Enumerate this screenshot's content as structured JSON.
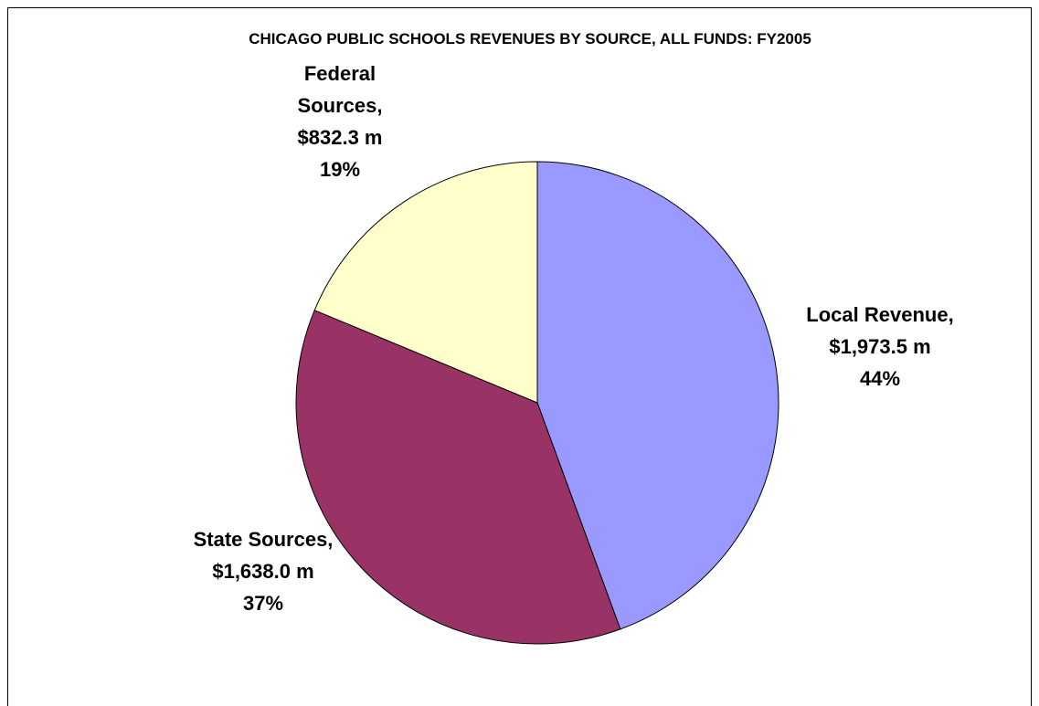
{
  "chart_data": {
    "type": "pie",
    "title": "CHICAGO PUBLIC SCHOOLS REVENUES BY SOURCE, ALL FUNDS: FY2005",
    "categories": [
      "Local Revenue,",
      "State Sources,",
      "Federal Sources,"
    ],
    "values": [
      1973.5,
      1638.0,
      832.3
    ],
    "value_labels": [
      "$1,973.5 m",
      "$1,638.0 m",
      "$832.3 m"
    ],
    "percent_labels": [
      "44%",
      "37%",
      "19%"
    ],
    "colors": [
      "#9999ff",
      "#993366",
      "#ffffcc"
    ]
  }
}
